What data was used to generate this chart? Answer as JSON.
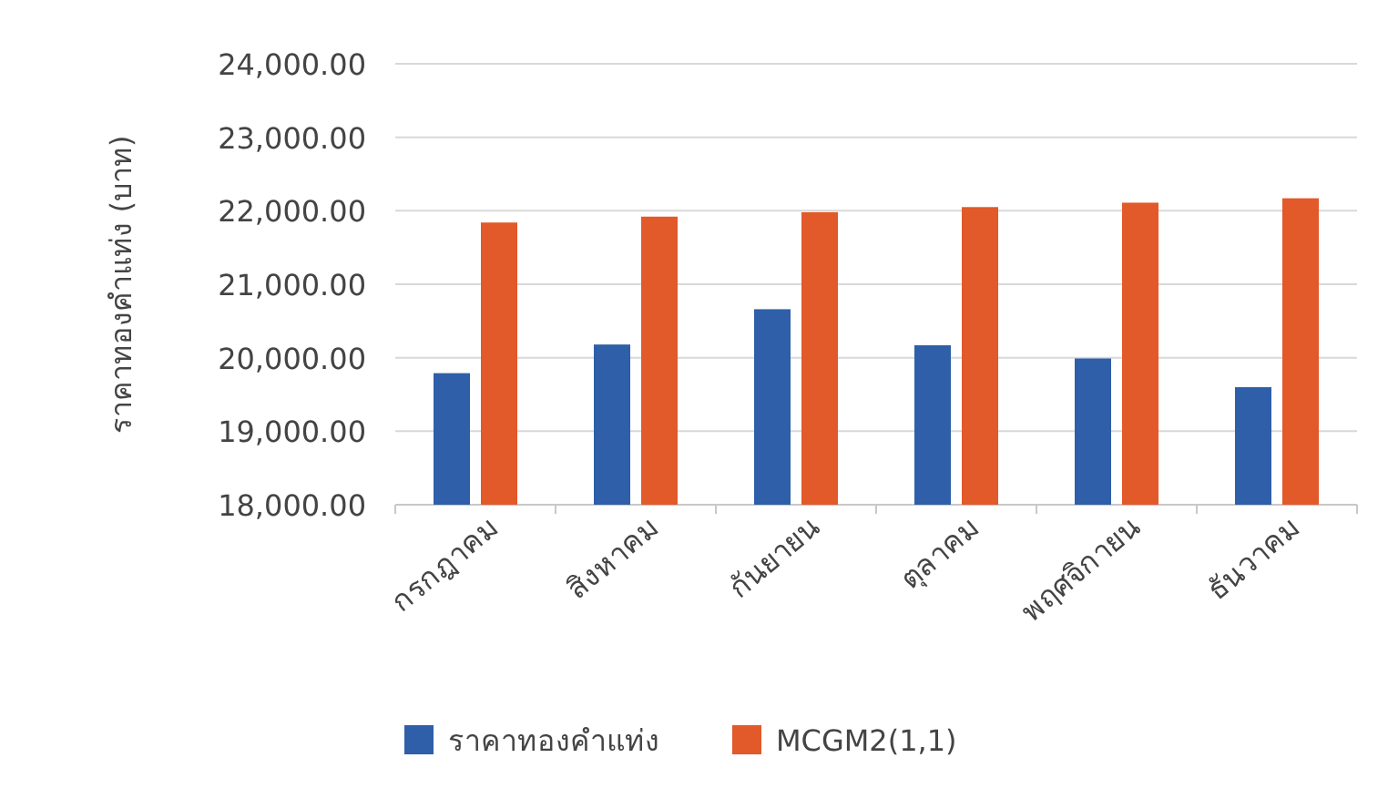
{
  "chart_data": {
    "type": "bar",
    "ylabel": "ราคาทองคำแท่ง (บาท)",
    "categories": [
      "กรกฎาคม",
      "สิงหาคม",
      "กันยายน",
      "ตุลาคม",
      "พฤศจิกายน",
      "ธันวาคม"
    ],
    "series": [
      {
        "name": "ราคาทองคำแท่ง",
        "color": "#2e5fa8",
        "values": [
          19790,
          20180,
          20660,
          20170,
          19990,
          19600
        ]
      },
      {
        "name": "MCGM2(1,1)",
        "color": "#e2592a",
        "values": [
          21840,
          21920,
          21980,
          22050,
          22110,
          22170
        ]
      }
    ],
    "ylim": [
      18000,
      24000
    ],
    "yticks": [
      {
        "value": 18000,
        "label": "18,000.00"
      },
      {
        "value": 19000,
        "label": "19,000.00"
      },
      {
        "value": 20000,
        "label": "20,000.00"
      },
      {
        "value": 21000,
        "label": "21,000.00"
      },
      {
        "value": 22000,
        "label": "22,000.00"
      },
      {
        "value": 23000,
        "label": "23,000.00"
      },
      {
        "value": 24000,
        "label": "24,000.00"
      }
    ],
    "grid": "y",
    "legend": "bottom"
  }
}
